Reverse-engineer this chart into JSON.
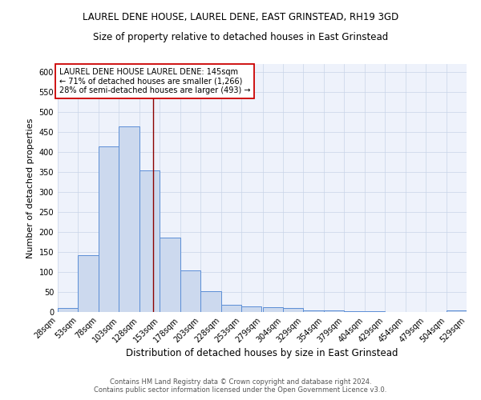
{
  "title": "LAUREL DENE HOUSE, LAUREL DENE, EAST GRINSTEAD, RH19 3GD",
  "subtitle": "Size of property relative to detached houses in East Grinstead",
  "xlabel": "Distribution of detached houses by size in East Grinstead",
  "ylabel": "Number of detached properties",
  "bin_edges": [
    28,
    53,
    78,
    103,
    128,
    153,
    178,
    203,
    228,
    253,
    279,
    304,
    329,
    354,
    379,
    404,
    429,
    454,
    479,
    504,
    529
  ],
  "bin_heights": [
    10,
    142,
    415,
    465,
    355,
    187,
    105,
    53,
    18,
    14,
    13,
    10,
    5,
    5,
    3,
    3,
    0,
    0,
    0,
    5
  ],
  "bar_facecolor": "#ccd9ee",
  "bar_edgecolor": "#5b8ed6",
  "bar_linewidth": 0.7,
  "vline_x": 145,
  "vline_color": "#8b0000",
  "vline_linewidth": 1.0,
  "annotation_text": "LAUREL DENE HOUSE LAUREL DENE: 145sqm\n← 71% of detached houses are smaller (1,266)\n28% of semi-detached houses are larger (493) →",
  "annotation_box_edgecolor": "#cc0000",
  "annotation_box_facecolor": "white",
  "annotation_fontsize": 7.0,
  "ylim": [
    0,
    620
  ],
  "yticks": [
    0,
    50,
    100,
    150,
    200,
    250,
    300,
    350,
    400,
    450,
    500,
    550,
    600
  ],
  "grid_color": "#c8d4e8",
  "grid_linewidth": 0.5,
  "background_color": "#eef2fb",
  "footer_line1": "Contains HM Land Registry data © Crown copyright and database right 2024.",
  "footer_line2": "Contains public sector information licensed under the Open Government Licence v3.0.",
  "title_fontsize": 8.5,
  "subtitle_fontsize": 8.5,
  "xlabel_fontsize": 8.5,
  "ylabel_fontsize": 8.0,
  "tick_fontsize": 7,
  "footer_fontsize": 6.0
}
